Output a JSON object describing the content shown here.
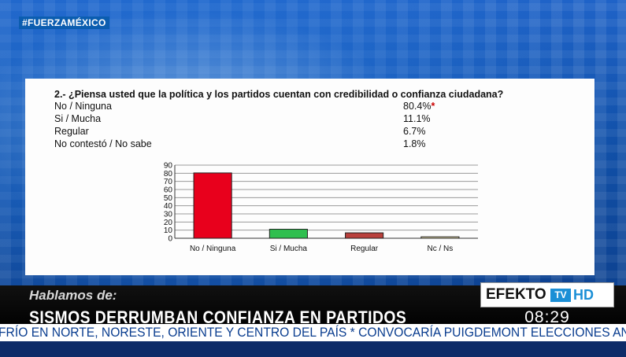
{
  "overlay": {
    "hashtag": "#FUERZAMÉXICO"
  },
  "survey": {
    "question": "2.- ¿Piensa usted que la política y los partidos cuentan con credibilidad o confianza ciudadana?",
    "answers": [
      {
        "label": "No / Ninguna",
        "value": "80.4%",
        "mark": "*"
      },
      {
        "label": "Si / Mucha",
        "value": "11.1%"
      },
      {
        "label": "Regular",
        "value": "6.7%"
      },
      {
        "label": "No contestó / No sabe",
        "value": "1.8%"
      }
    ]
  },
  "chart_data": {
    "type": "bar",
    "categories": [
      "No / Ninguna",
      "Si / Mucha",
      "Regular",
      "Nc / Ns"
    ],
    "values": [
      80.4,
      11.1,
      6.7,
      1.8
    ],
    "colors": [
      "#e8001c",
      "#2fbf4f",
      "#b9403c",
      "#f4e9b8"
    ],
    "yticks": [
      0,
      10,
      20,
      30,
      40,
      50,
      60,
      70,
      80,
      90
    ],
    "ylim": [
      0,
      90
    ],
    "grid": true,
    "title": "",
    "xlabel": "",
    "ylabel": ""
  },
  "lower_third": {
    "kicker": "Hablamos de:",
    "headline": "SISMOS DERRUMBAN CONFIANZA EN PARTIDOS",
    "ticker": "FRÍO EN NORTE, NORESTE, ORIENTE Y CENTRO DEL PAÍS * CONVOCARÍA PUIGDEMONT ELECCIONES ANTICIPA"
  },
  "branding": {
    "name": "EFEKTO",
    "tv": "TV",
    "hd": "HD",
    "clock": "08:29"
  }
}
